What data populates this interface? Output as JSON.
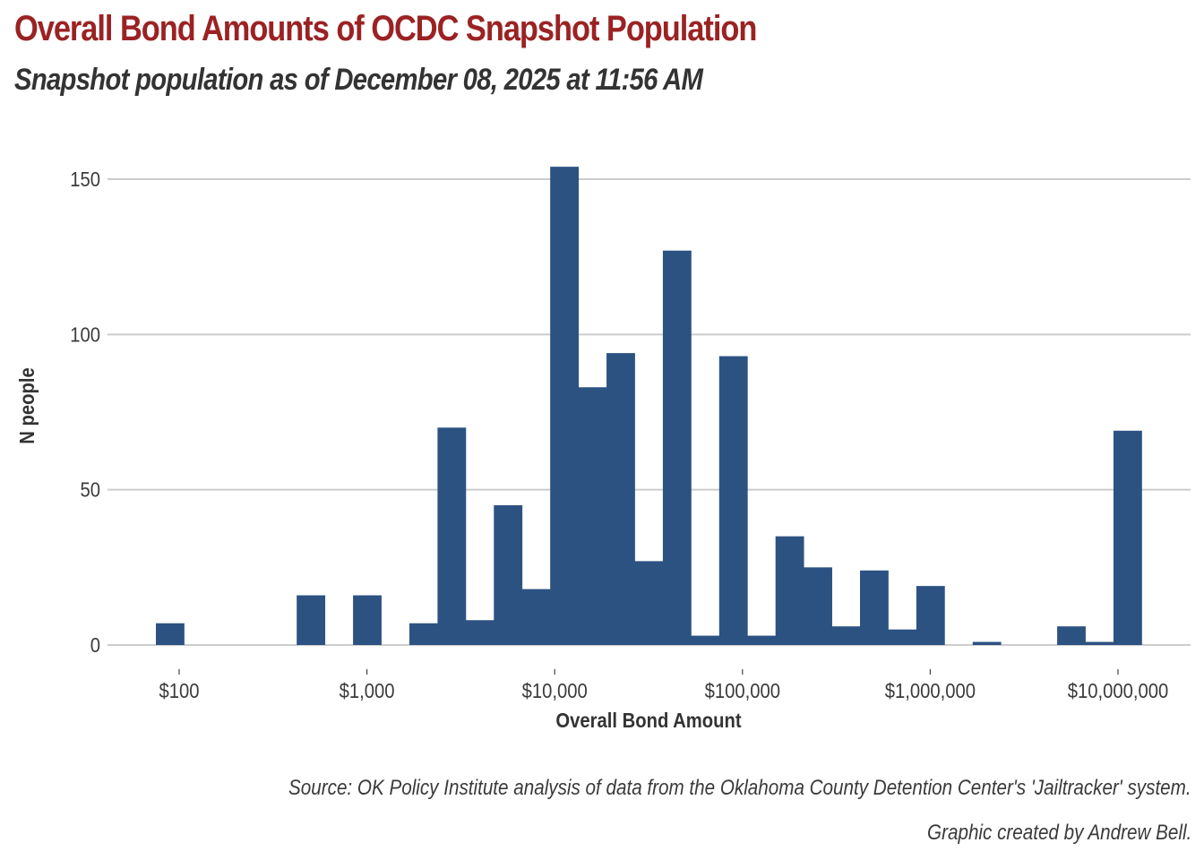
{
  "header": {
    "title": "Overall Bond Amounts of OCDC Snapshot Population",
    "subtitle": "Snapshot population as of December 08, 2025 at 11:56 AM"
  },
  "footer": {
    "source": "Source: OK Policy Institute analysis of data from the Oklahoma County Detention Center's 'Jailtracker' system.",
    "credit": "Graphic created by Andrew Bell."
  },
  "colors": {
    "title": "#9b2223",
    "bar": "#2c5282",
    "grid": "#cccccc",
    "text": "#333333"
  },
  "chart_data": {
    "type": "bar",
    "subtype": "histogram",
    "title": "Overall Bond Amounts of OCDC Snapshot Population",
    "subtitle": "Snapshot population as of December 08, 2025 at 11:56 AM",
    "xlabel": "Overall Bond Amount",
    "ylabel": "N people",
    "x_scale": "log10",
    "x_ticks": [
      100,
      1000,
      10000,
      100000,
      1000000,
      10000000
    ],
    "x_tick_labels": [
      "$100",
      "$1,000",
      "$10,000",
      "$100,000",
      "$1,000,000",
      "$10,000,000"
    ],
    "xlim_log10": [
      1.62,
      7.42
    ],
    "bin_start_log10": 1.876,
    "bin_width_log10": 0.15,
    "values": [
      7,
      0,
      0,
      0,
      0,
      16,
      0,
      16,
      0,
      7,
      70,
      8,
      45,
      18,
      154,
      83,
      94,
      27,
      127,
      3,
      93,
      3,
      35,
      25,
      6,
      24,
      5,
      19,
      0,
      1,
      0,
      0,
      6,
      1,
      69
    ],
    "y_ticks": [
      0,
      50,
      100,
      150
    ],
    "ylim": [
      0,
      154
    ],
    "grid": "horizontal",
    "legend": "none"
  }
}
